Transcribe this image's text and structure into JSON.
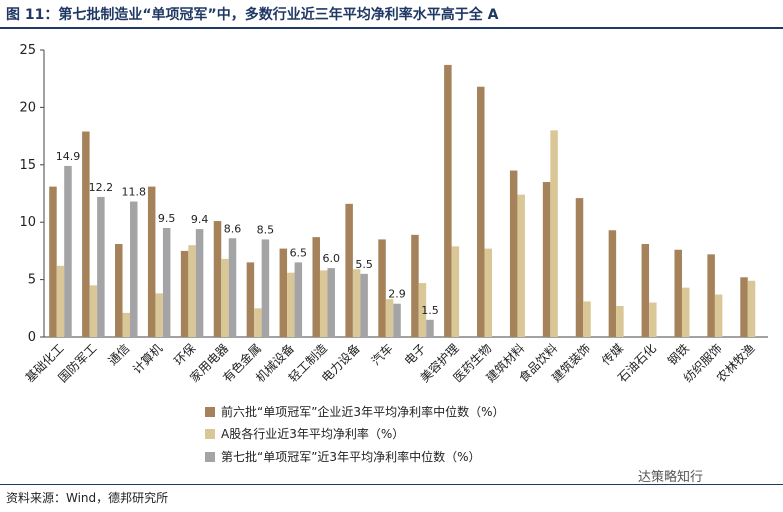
{
  "header": {
    "title": "图 11：第七批制造业“单项冠军”中，多数行业近三年平均净利率水平高于全 A"
  },
  "footer": {
    "source": "资料来源：Wind，德邦研究所",
    "watermark": "达策略知行"
  },
  "colors": {
    "s1": "#a5825a",
    "s2": "#dac798",
    "s3": "#a4a4a7",
    "title": "#1f3864"
  },
  "chart_data": {
    "type": "bar",
    "title": "",
    "xlabel": "",
    "ylabel": "",
    "ylim": [
      0,
      25
    ],
    "yticks": [
      "0",
      "5",
      "10",
      "15",
      "20",
      "25"
    ],
    "legend_position": "bottom",
    "categories": [
      "基础化工",
      "国防军工",
      "通信",
      "计算机",
      "环保",
      "家用电器",
      "有色金属",
      "机械设备",
      "轻工制造",
      "电力设备",
      "汽车",
      "电子",
      "美容护理",
      "医药生物",
      "建筑材料",
      "食品饮料",
      "建筑装饰",
      "传媒",
      "石油石化",
      "钢铁",
      "纺织服饰",
      "农林牧渔"
    ],
    "series": [
      {
        "name": "前六批“单项冠军”企业近3年平均净利率中位数（%）",
        "values": [
          13.1,
          17.9,
          8.1,
          13.1,
          7.5,
          10.1,
          6.5,
          7.7,
          8.7,
          11.6,
          8.5,
          8.9,
          23.7,
          21.8,
          14.5,
          13.5,
          12.1,
          9.3,
          8.1,
          7.6,
          7.2,
          5.2
        ]
      },
      {
        "name": "A股各行业近3年平均净利率（%）",
        "values": [
          6.2,
          4.5,
          2.1,
          3.8,
          8.0,
          6.8,
          2.5,
          5.6,
          5.8,
          5.9,
          3.3,
          4.7,
          7.9,
          7.7,
          12.4,
          18.0,
          3.1,
          2.7,
          3.0,
          4.3,
          3.7,
          4.9
        ]
      },
      {
        "name": "第七批“单项冠军”近3年平均净利率中位数（%）",
        "values": [
          14.9,
          12.2,
          11.8,
          9.5,
          9.4,
          8.6,
          8.5,
          6.5,
          6.0,
          5.5,
          2.9,
          1.5,
          null,
          null,
          null,
          null,
          null,
          null,
          null,
          null,
          null,
          null
        ]
      }
    ],
    "data_labels": {
      "series_index": 2,
      "labels": [
        "14.9",
        "12.2",
        "11.8",
        "9.5",
        "9.4",
        "8.6",
        "8.5",
        "6.5",
        "6.0",
        "5.5",
        "2.9",
        "1.5"
      ]
    }
  }
}
